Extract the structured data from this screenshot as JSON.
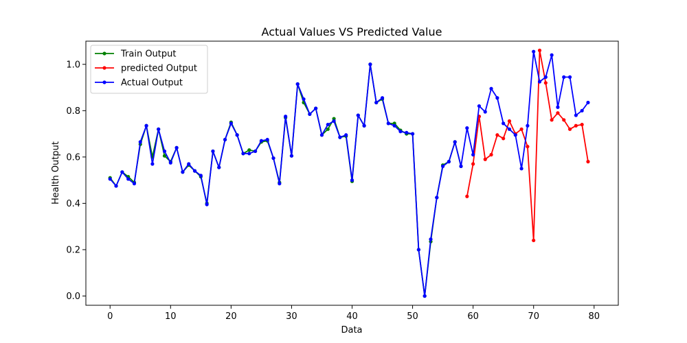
{
  "chart_data": {
    "type": "line",
    "title": "Actual Values VS Predicted Value",
    "xlabel": "Data",
    "ylabel": "Health Output",
    "xlim": [
      -4,
      84
    ],
    "ylim": [
      -0.04,
      1.1
    ],
    "xticks": [
      0,
      10,
      20,
      30,
      40,
      50,
      60,
      70,
      80
    ],
    "yticks": [
      0.0,
      0.2,
      0.4,
      0.6,
      0.8,
      1.0
    ],
    "xtick_labels": [
      "0",
      "10",
      "20",
      "30",
      "40",
      "50",
      "60",
      "70",
      "80"
    ],
    "ytick_labels": [
      "0.0",
      "0.2",
      "0.4",
      "0.6",
      "0.8",
      "1.0"
    ],
    "grid": false,
    "legend_position": "top-left",
    "series": [
      {
        "name": "Train Output",
        "color": "#008000",
        "x_start": 0,
        "values": [
          0.51,
          0.475,
          0.535,
          0.515,
          0.49,
          0.655,
          0.735,
          0.6,
          0.72,
          0.605,
          0.58,
          0.64,
          0.535,
          0.565,
          0.54,
          0.515,
          0.4,
          0.625,
          0.555,
          0.675,
          0.75,
          0.695,
          0.615,
          0.63,
          0.625,
          0.665,
          0.67,
          0.595,
          0.49,
          0.77,
          0.605,
          0.915,
          0.835,
          0.785,
          0.81,
          0.695,
          0.72,
          0.765,
          0.685,
          0.69,
          0.495,
          0.78,
          0.735,
          1.0,
          0.835,
          0.85,
          0.745,
          0.745,
          0.715,
          0.7,
          0.7,
          0.2,
          0.0,
          0.235,
          0.425,
          0.565,
          0.58,
          0.665,
          0.56
        ]
      },
      {
        "name": "predicted Output",
        "color": "#ff0000",
        "x_start": 59,
        "values": [
          0.43,
          0.57,
          0.775,
          0.59,
          0.61,
          0.695,
          0.68,
          0.755,
          0.7,
          0.72,
          0.645,
          0.24,
          1.06,
          0.92,
          0.76,
          0.79,
          0.76,
          0.72,
          0.735,
          0.74,
          0.58
        ]
      },
      {
        "name": "Actual Output",
        "color": "#0000ff",
        "x_start": 0,
        "values": [
          0.505,
          0.475,
          0.535,
          0.505,
          0.485,
          0.665,
          0.735,
          0.57,
          0.72,
          0.625,
          0.575,
          0.64,
          0.535,
          0.57,
          0.54,
          0.52,
          0.395,
          0.625,
          0.555,
          0.675,
          0.745,
          0.695,
          0.615,
          0.615,
          0.625,
          0.67,
          0.675,
          0.595,
          0.485,
          0.775,
          0.605,
          0.915,
          0.85,
          0.785,
          0.81,
          0.695,
          0.74,
          0.755,
          0.685,
          0.695,
          0.5,
          0.78,
          0.735,
          1.0,
          0.835,
          0.855,
          0.745,
          0.735,
          0.71,
          0.705,
          0.7,
          0.2,
          0.0,
          0.245,
          0.425,
          0.56,
          0.58,
          0.665,
          0.56,
          0.725,
          0.61,
          0.82,
          0.795,
          0.895,
          0.855,
          0.745,
          0.72,
          0.695,
          0.55,
          0.735,
          1.055,
          0.925,
          0.945,
          1.04,
          0.815,
          0.945,
          0.945,
          0.78,
          0.8,
          0.835
        ]
      }
    ]
  }
}
